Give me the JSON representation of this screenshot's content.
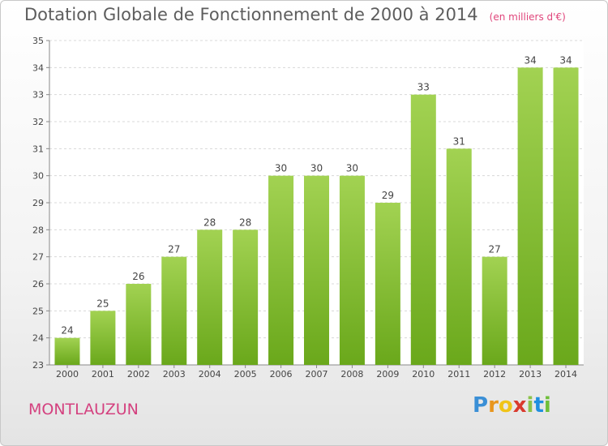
{
  "title": "Dotation Globale de Fonctionnement de 2000 à 2014",
  "subtitle": "(en milliers d'€)",
  "commune": "MONTLAUZUN",
  "logo": {
    "text": "Proxiti",
    "colors": [
      "#3a8fd6",
      "#e8961e",
      "#f0c419",
      "#d93a2e",
      "#8bc34a",
      "#1f8fe0",
      "#6fbf3a"
    ]
  },
  "colors": {
    "bar_top": "#a2d252",
    "bar_bottom": "#6aa81b",
    "accent": "#d4417f"
  },
  "chart_data": {
    "type": "bar",
    "title": "Dotation Globale de Fonctionnement de 2000 à 2014",
    "subtitle": "(en milliers d'€)",
    "categories": [
      "2000",
      "2001",
      "2002",
      "2003",
      "2004",
      "2005",
      "2006",
      "2007",
      "2008",
      "2009",
      "2010",
      "2011",
      "2012",
      "2013",
      "2014"
    ],
    "values": [
      24,
      25,
      26,
      27,
      28,
      28,
      30,
      30,
      30,
      29,
      33,
      31,
      27,
      34,
      34
    ],
    "ylim": [
      23,
      35
    ],
    "yticks": [
      23,
      24,
      25,
      26,
      27,
      28,
      29,
      30,
      31,
      32,
      33,
      34,
      35
    ],
    "grid": true,
    "xlabel": "",
    "ylabel": ""
  }
}
